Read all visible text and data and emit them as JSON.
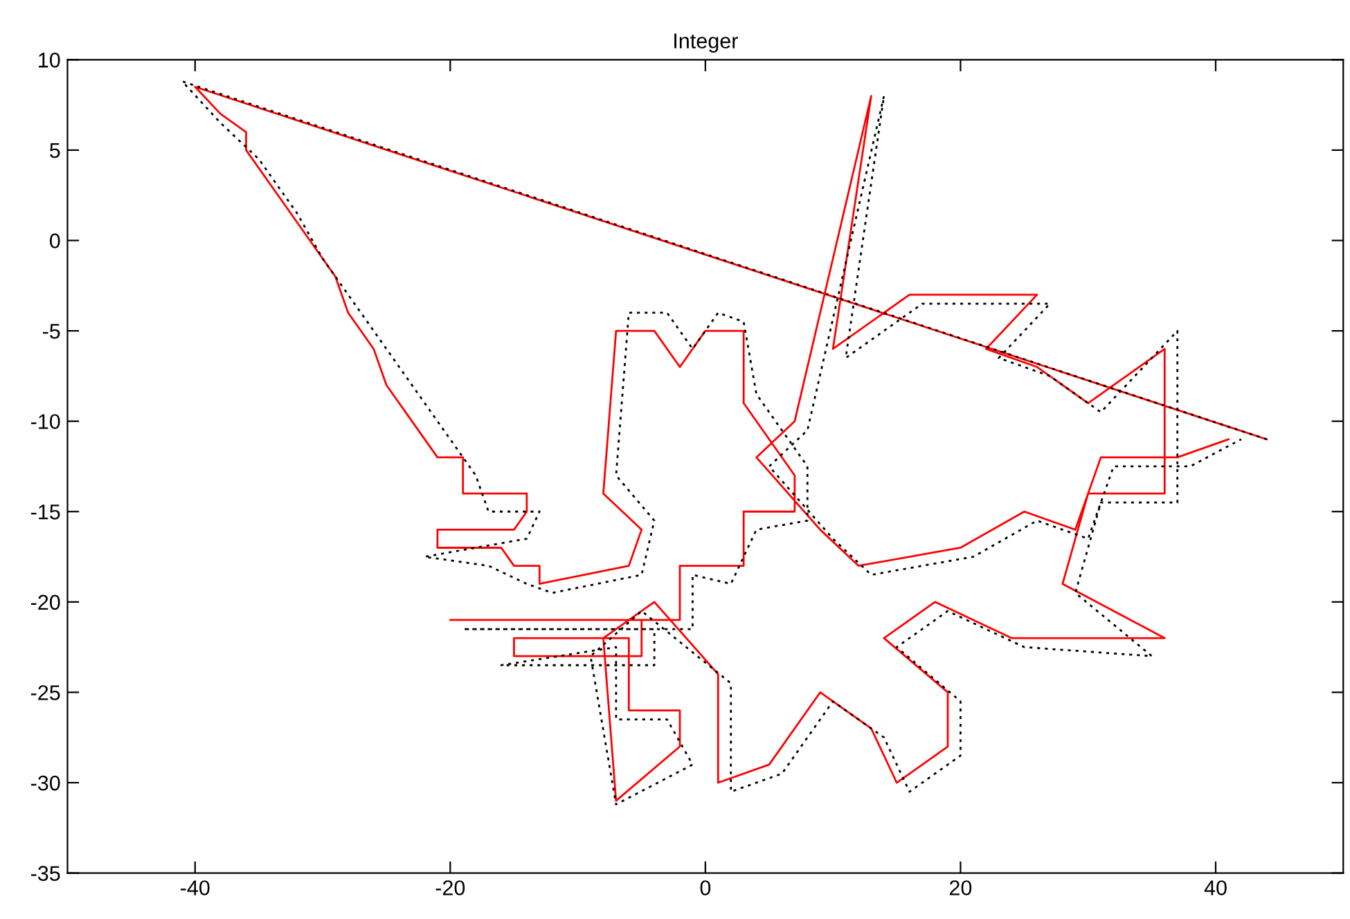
{
  "chart_data": {
    "type": "line",
    "title": "Integer",
    "xlim": [
      -50,
      50
    ],
    "xticks": [
      -40,
      -20,
      0,
      20,
      40
    ],
    "ylim": [
      -35,
      10
    ],
    "yticks": [
      -35,
      -30,
      -25,
      -20,
      -15,
      -10,
      -5,
      0,
      5,
      10
    ],
    "grid": false,
    "legend": false,
    "marker": "none",
    "series": [
      {
        "color": "#ff0000",
        "line_style": "solid",
        "x": [
          44,
          -40,
          -38,
          -36,
          -36,
          -33,
          -31,
          -29,
          -28,
          -26,
          -25,
          -23,
          -21,
          -19,
          -19,
          -14,
          -14,
          -15,
          -21,
          -21,
          -16,
          -15,
          -13,
          -13,
          -6,
          -5,
          -8,
          -7,
          -4,
          -2,
          0,
          3,
          3,
          5,
          7,
          7,
          3,
          3,
          -2,
          -2,
          -20,
          -5,
          -5,
          -15,
          -15,
          -6,
          -6,
          -2,
          -2,
          -7,
          -8,
          -4,
          1,
          1,
          5,
          9,
          13,
          15,
          19,
          19,
          14,
          18,
          24,
          36,
          28,
          30,
          36,
          36,
          30,
          26,
          22,
          26,
          16,
          10,
          13,
          7,
          4,
          9,
          12,
          20,
          25,
          29,
          31,
          37,
          41
        ],
        "values": [
          -11,
          8.5,
          7,
          6,
          5,
          2,
          0,
          -2,
          -4,
          -6,
          -8,
          -10,
          -12,
          -12,
          -14,
          -14,
          -15,
          -16,
          -16,
          -17,
          -17,
          -18,
          -18,
          -19,
          -18,
          -16,
          -14,
          -5,
          -5,
          -7,
          -5,
          -5,
          -9,
          -11,
          -13,
          -15,
          -15,
          -18,
          -18,
          -21,
          -21,
          -21,
          -23,
          -23,
          -22,
          -22,
          -26,
          -26,
          -28,
          -31,
          -22,
          -20,
          -24,
          -30,
          -29,
          -25,
          -27,
          -30,
          -28,
          -25,
          -22,
          -20,
          -22,
          -22,
          -19,
          -14,
          -14,
          -6,
          -9,
          -7,
          -6,
          -3,
          -3,
          -6,
          8,
          -10,
          -12,
          -16,
          -18,
          -17,
          -15,
          -16,
          -12,
          -12,
          -11
        ]
      },
      {
        "color": "#000000",
        "line_style": "dotted",
        "x": [
          44,
          -41,
          -38,
          -35,
          -32,
          -30,
          -28,
          -26,
          -24,
          -22,
          -20,
          -18,
          -17,
          -13,
          -14,
          -22,
          -17,
          -14,
          -12,
          -5,
          -4,
          -7,
          -6,
          -3,
          -1,
          1,
          3,
          4,
          6,
          8,
          8,
          4,
          2,
          -1,
          -1,
          -19,
          -4,
          -4,
          -16,
          -7,
          -7,
          -3,
          -1,
          -7,
          -9,
          -5,
          2,
          2,
          6,
          10,
          14,
          16,
          20,
          20,
          15,
          19,
          25,
          35,
          29,
          31,
          37,
          37,
          31,
          27,
          23,
          27,
          17,
          11,
          14,
          8,
          5,
          10,
          13,
          21,
          26,
          30,
          32,
          38,
          42
        ],
        "values": [
          -11,
          8.8,
          6.5,
          4.5,
          1.5,
          -1,
          -3,
          -5,
          -7,
          -9,
          -11,
          -13,
          -15,
          -15,
          -16.5,
          -17.5,
          -18,
          -19,
          -19.5,
          -18.5,
          -15.5,
          -13,
          -4,
          -4,
          -6,
          -4,
          -4.5,
          -8.5,
          -10.5,
          -12.5,
          -15.5,
          -16,
          -19,
          -18.5,
          -21.5,
          -21.5,
          -21.5,
          -23.5,
          -23.5,
          -22.5,
          -26.5,
          -26.5,
          -29,
          -31.2,
          -23,
          -20.5,
          -24.5,
          -30.5,
          -29.5,
          -25.5,
          -27.5,
          -30.5,
          -28.5,
          -25.5,
          -22.5,
          -20.5,
          -22.5,
          -23,
          -19.5,
          -14.5,
          -14.5,
          -5,
          -9.5,
          -7.5,
          -6.5,
          -3.5,
          -3.5,
          -6.5,
          8,
          -10.5,
          -12.5,
          -16.5,
          -18.5,
          -17.5,
          -15.5,
          -16.5,
          -12.5,
          -12.5,
          -11
        ]
      }
    ]
  }
}
